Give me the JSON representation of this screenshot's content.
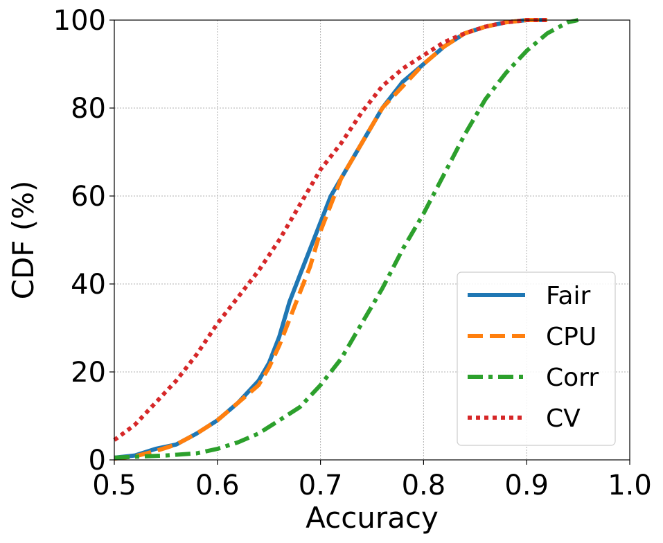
{
  "chart_data": {
    "type": "line",
    "title": "",
    "xlabel": "Accuracy",
    "ylabel": "CDF (%)",
    "xlim": [
      0.5,
      1.0
    ],
    "ylim": [
      0,
      100
    ],
    "xticks": [
      "0.5",
      "0.6",
      "0.7",
      "0.8",
      "0.9",
      "1.0"
    ],
    "yticks": [
      "0",
      "20",
      "40",
      "60",
      "80",
      "100"
    ],
    "grid": true,
    "legend_position": "lower-right",
    "series": [
      {
        "name": "Fair",
        "color": "#1f77b4",
        "style": "solid",
        "x": [
          0.5,
          0.52,
          0.54,
          0.56,
          0.58,
          0.6,
          0.62,
          0.64,
          0.65,
          0.66,
          0.67,
          0.68,
          0.69,
          0.7,
          0.71,
          0.72,
          0.74,
          0.76,
          0.78,
          0.8,
          0.82,
          0.84,
          0.86,
          0.88,
          0.9,
          0.92
        ],
        "y": [
          0.5,
          1,
          2.5,
          3.5,
          6,
          9,
          13,
          18,
          22,
          28,
          36,
          42,
          48,
          54,
          60,
          64,
          72,
          80,
          86,
          90,
          94,
          97,
          98.5,
          99.5,
          100,
          100
        ]
      },
      {
        "name": "CPU",
        "color": "#ff7f0e",
        "style": "dashed",
        "x": [
          0.5,
          0.52,
          0.54,
          0.56,
          0.58,
          0.6,
          0.62,
          0.64,
          0.65,
          0.66,
          0.67,
          0.68,
          0.69,
          0.7,
          0.71,
          0.72,
          0.74,
          0.76,
          0.78,
          0.8,
          0.82,
          0.84,
          0.86,
          0.88,
          0.9,
          0.92
        ],
        "y": [
          0.3,
          0.8,
          2,
          3.5,
          6,
          9,
          13,
          17,
          21,
          26,
          32,
          38,
          44,
          52,
          58,
          64,
          72,
          80,
          85,
          90,
          94,
          97,
          98.5,
          99.5,
          100,
          100
        ]
      },
      {
        "name": "Corr",
        "color": "#2ca02c",
        "style": "dashdot",
        "x": [
          0.5,
          0.55,
          0.58,
          0.6,
          0.62,
          0.64,
          0.66,
          0.68,
          0.7,
          0.72,
          0.74,
          0.76,
          0.78,
          0.8,
          0.82,
          0.84,
          0.86,
          0.88,
          0.9,
          0.92,
          0.94,
          0.95
        ],
        "y": [
          0.5,
          1,
          1.5,
          2.5,
          4,
          6,
          9,
          12,
          17,
          23,
          31,
          39,
          48,
          56,
          65,
          74,
          82,
          88,
          93,
          97,
          99.5,
          100
        ]
      },
      {
        "name": "CV",
        "color": "#d62728",
        "style": "dotted",
        "x": [
          0.5,
          0.52,
          0.54,
          0.56,
          0.58,
          0.6,
          0.62,
          0.64,
          0.66,
          0.68,
          0.7,
          0.72,
          0.74,
          0.76,
          0.78,
          0.8,
          0.82,
          0.84,
          0.86,
          0.88,
          0.9,
          0.92
        ],
        "y": [
          4.5,
          8,
          13,
          18,
          24,
          31,
          37,
          43,
          50,
          58,
          66,
          72,
          79,
          85,
          89,
          92,
          95,
          97,
          98.5,
          99.5,
          100,
          100
        ]
      }
    ]
  }
}
